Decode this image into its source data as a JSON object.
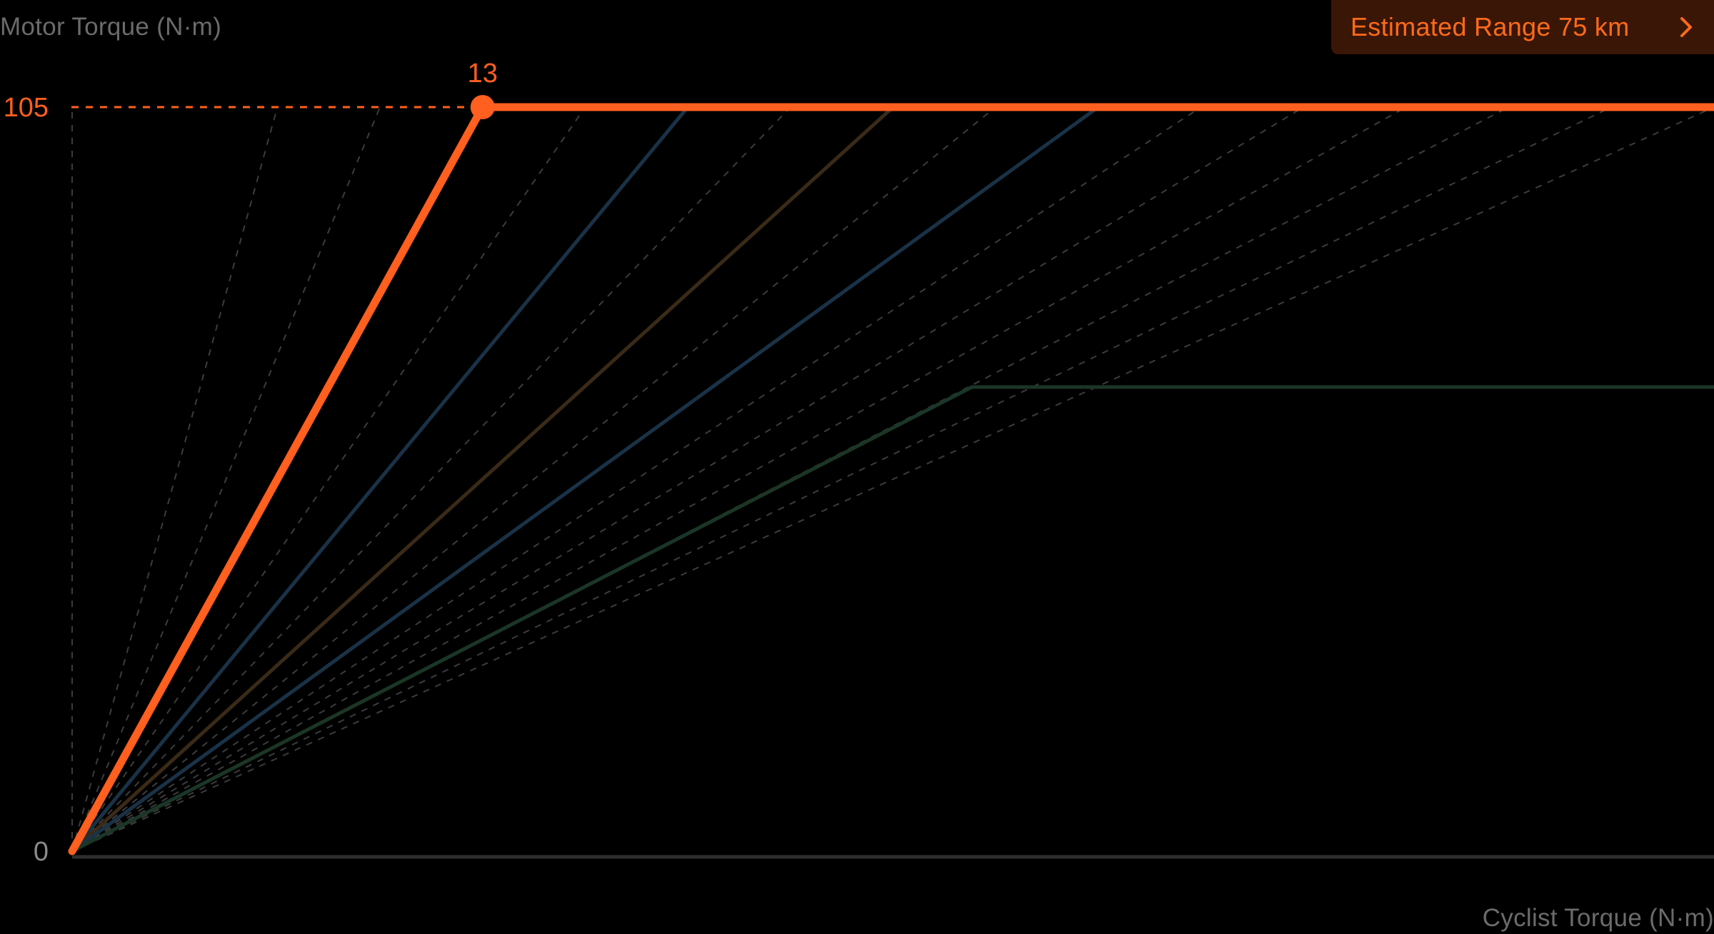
{
  "colors": {
    "background": "#000000",
    "active": "#ff5f1f",
    "blue": "#1a3247",
    "brown": "#3a2a17",
    "green": "#1b3626",
    "guide": "#3c3c3c",
    "axis": "#2e2e2e",
    "muted_text": "#6b6b6b",
    "button_bg": "#3a1606"
  },
  "range_button": {
    "label": "Estimated Range 75 km",
    "icon": "chevron-right-icon"
  },
  "chart_data": {
    "type": "line",
    "xlabel": "Cyclist Torque (N·m)",
    "ylabel": "Motor Torque (N·m)",
    "xlim": [
      0,
      52
    ],
    "ylim": [
      0,
      105
    ],
    "y_tick_labels": [
      "0",
      "105"
    ],
    "active_point": {
      "x": 13,
      "y": 105,
      "label": "13"
    },
    "series": [
      {
        "color": "#ff5f1f",
        "active": true,
        "points": [
          [
            0,
            0
          ],
          [
            13,
            105
          ],
          [
            52,
            105
          ]
        ]
      },
      {
        "color": "#1a3247",
        "active": false,
        "points": [
          [
            0,
            0
          ],
          [
            19.5,
            105
          ]
        ]
      },
      {
        "color": "#3a2a17",
        "active": false,
        "points": [
          [
            0,
            0
          ],
          [
            26,
            105
          ]
        ]
      },
      {
        "color": "#1a3247",
        "active": false,
        "points": [
          [
            0,
            0
          ],
          [
            32.5,
            105
          ]
        ]
      },
      {
        "color": "#1b3626",
        "active": false,
        "points": [
          [
            0,
            0
          ],
          [
            28.5,
            65.5
          ],
          [
            52,
            65.5
          ]
        ]
      }
    ],
    "guide_end_x": [
      0,
      6.5,
      9.75,
      16.25,
      22.75,
      29.25,
      35.75,
      39,
      42.25,
      45.5,
      48.75,
      52
    ],
    "grid": false
  }
}
